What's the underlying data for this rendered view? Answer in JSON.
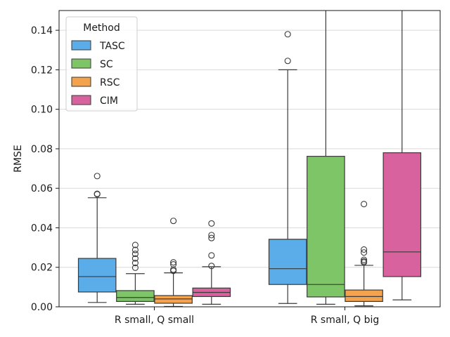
{
  "chart_data": {
    "type": "boxplot",
    "title": "",
    "xlabel": "",
    "ylabel": "RMSE",
    "ylim": [
      0,
      0.15
    ],
    "yticks": [
      0.0,
      0.02,
      0.04,
      0.06,
      0.08,
      0.1,
      0.12,
      0.14
    ],
    "ytick_labels": [
      "0.00",
      "0.02",
      "0.04",
      "0.06",
      "0.08",
      "0.10",
      "0.12",
      "0.14"
    ],
    "grid": "horizontal",
    "categories": [
      "R small, Q small",
      "R small, Q big"
    ],
    "legend": {
      "title": "Method",
      "position": "top-left"
    },
    "series": [
      {
        "name": "TASC",
        "color": "#5aade8",
        "boxes": [
          {
            "whisker_low": 0.0022,
            "q1": 0.0075,
            "median": 0.0153,
            "q3": 0.0245,
            "whisker_high": 0.0552,
            "outliers": [
              0.0662,
              0.0572,
              0.057
            ]
          },
          {
            "whisker_low": 0.0017,
            "q1": 0.0113,
            "median": 0.0193,
            "q3": 0.0342,
            "whisker_high": 0.12,
            "outliers": [
              0.138,
              0.1245
            ]
          }
        ]
      },
      {
        "name": "SC",
        "color": "#7ec567",
        "boxes": [
          {
            "whisker_low": 0.0013,
            "q1": 0.0027,
            "median": 0.0047,
            "q3": 0.0082,
            "whisker_high": 0.0168,
            "outliers": [
              0.0313,
              0.0288,
              0.0268,
              0.0245,
              0.0222,
              0.0198
            ]
          },
          {
            "whisker_low": 0.0013,
            "q1": 0.005,
            "median": 0.0113,
            "q3": 0.0762,
            "whisker_high": 0.15,
            "outliers": []
          }
        ]
      },
      {
        "name": "RSC",
        "color": "#f3a24d",
        "boxes": [
          {
            "whisker_low": 0.0002,
            "q1": 0.0018,
            "median": 0.004,
            "q3": 0.0057,
            "whisker_high": 0.0172,
            "outliers": [
              0.0435,
              0.0225,
              0.0215,
              0.0188,
              0.0182
            ]
          },
          {
            "whisker_low": 0.0005,
            "q1": 0.0027,
            "median": 0.0052,
            "q3": 0.0085,
            "whisker_high": 0.021,
            "outliers": [
              0.052,
              0.029,
              0.0275,
              0.0238,
              0.023,
              0.0225
            ]
          }
        ]
      },
      {
        "name": "CIM",
        "color": "#d8629e",
        "boxes": [
          {
            "whisker_low": 0.0013,
            "q1": 0.0052,
            "median": 0.0073,
            "q3": 0.0095,
            "whisker_high": 0.0203,
            "outliers": [
              0.0422,
              0.0363,
              0.0348,
              0.026,
              0.0207
            ]
          },
          {
            "whisker_low": 0.0035,
            "q1": 0.0153,
            "median": 0.0278,
            "q3": 0.078,
            "whisker_high": 0.15,
            "outliers": []
          }
        ]
      }
    ]
  }
}
